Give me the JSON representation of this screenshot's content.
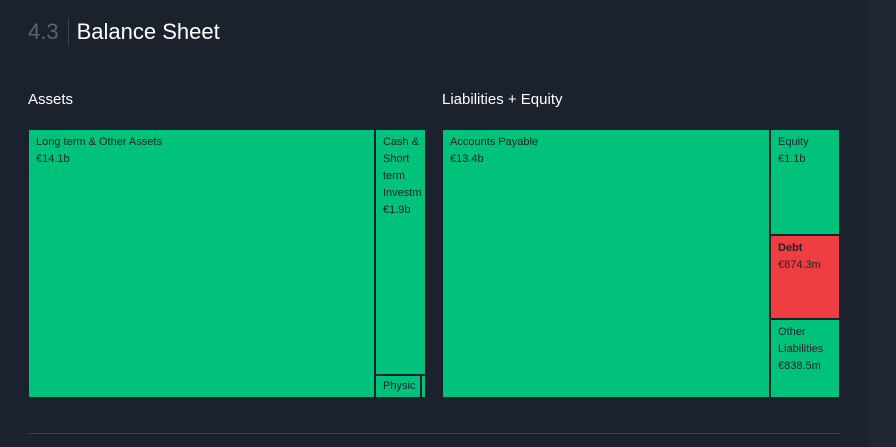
{
  "header": {
    "section_number": "4.3",
    "title": "Balance Sheet"
  },
  "colors": {
    "background": "#1b222d",
    "positive": "#00c27a",
    "negative": "#ef3e42"
  },
  "chart_data": [
    {
      "type": "treemap",
      "title": "Assets",
      "items": [
        {
          "label": "Long term & Other Assets",
          "value_text": "€14.1b",
          "value": 14.1,
          "unit": "€b",
          "color": "#00c27a"
        },
        {
          "label": "Cash & Short term Investm",
          "value_text": "€1.9b",
          "value": 1.9,
          "unit": "€b",
          "color": "#00c27a"
        },
        {
          "label": "Physic",
          "value_text": "",
          "color": "#00c27a"
        },
        {
          "label": "",
          "value_text": "",
          "color": "#00c27a"
        }
      ]
    },
    {
      "type": "treemap",
      "title": "Liabilities + Equity",
      "items": [
        {
          "label": "Accounts Payable",
          "value_text": "€13.4b",
          "value": 13.4,
          "unit": "€b",
          "color": "#00c27a"
        },
        {
          "label": "Equity",
          "value_text": "€1.1b",
          "value": 1.1,
          "unit": "€b",
          "color": "#00c27a"
        },
        {
          "label": "Debt",
          "value_text": "€874.3m",
          "value": 874.3,
          "unit": "€m",
          "color": "#ef3e42"
        },
        {
          "label": "Other Liabilities",
          "value_text": "€838.5m",
          "value": 838.5,
          "unit": "€m",
          "color": "#00c27a"
        }
      ]
    }
  ]
}
